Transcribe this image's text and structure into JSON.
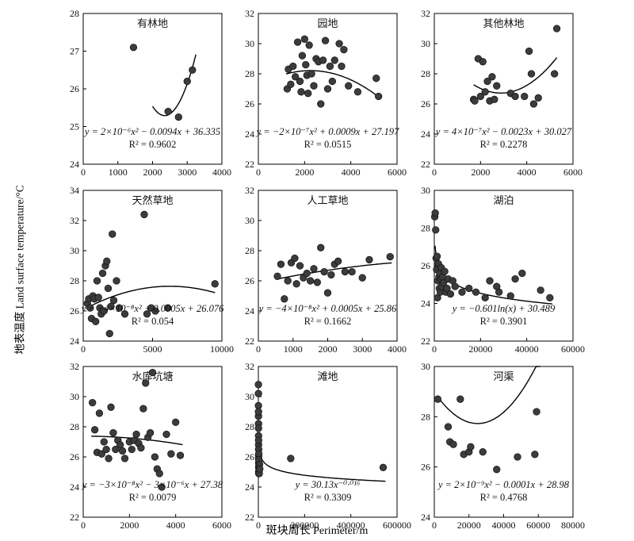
{
  "figure": {
    "ylabel": "地表温度 Land surface temperature/°C",
    "xlabel": "斑块周长  Perimeter/m"
  },
  "chart_data": [
    {
      "type": "scatter",
      "title": "有林地",
      "xlim": [
        0,
        4000
      ],
      "ylim": [
        24,
        28
      ],
      "xticks": [
        "0",
        "1000",
        "2000",
        "3000",
        "4000"
      ],
      "yticks": [
        "24",
        "25",
        "26",
        "27",
        "28"
      ],
      "equation": "y = 2×10⁻⁶x² − 0.0094x + 36.335",
      "r2": "R² = 0.9602",
      "fit": {
        "kind": "poly",
        "coef": [
          36.335,
          -0.0094,
          2e-06
        ],
        "range": [
          2000,
          3250
        ]
      },
      "points": [
        [
          1450,
          27.1
        ],
        [
          2450,
          25.4
        ],
        [
          2750,
          25.25
        ],
        [
          3000,
          26.2
        ],
        [
          3150,
          26.5
        ]
      ]
    },
    {
      "type": "scatter",
      "title": "园地",
      "xlim": [
        0,
        6000
      ],
      "ylim": [
        22,
        32
      ],
      "xticks": [
        "0",
        "2000",
        "4000",
        "6000"
      ],
      "yticks": [
        "22",
        "24",
        "26",
        "28",
        "30",
        "32"
      ],
      "equation": "y = −2×10⁻⁷x² + 0.0009x + 27.197",
      "r2": "R² = 0.0515",
      "fit": {
        "kind": "poly",
        "coef": [
          27.197,
          0.0009,
          -2e-07
        ],
        "range": [
          1200,
          5200
        ]
      },
      "points": [
        [
          1250,
          27.0
        ],
        [
          1300,
          28.3
        ],
        [
          1400,
          27.3
        ],
        [
          1500,
          28.5
        ],
        [
          1600,
          27.8
        ],
        [
          1700,
          30.1
        ],
        [
          1800,
          27.5
        ],
        [
          1850,
          26.8
        ],
        [
          1900,
          29.2
        ],
        [
          2000,
          30.3
        ],
        [
          2050,
          28.6
        ],
        [
          2100,
          27.9
        ],
        [
          2150,
          26.7
        ],
        [
          2200,
          29.9
        ],
        [
          2300,
          28.0
        ],
        [
          2400,
          27.2
        ],
        [
          2500,
          29.0
        ],
        [
          2600,
          28.8
        ],
        [
          2700,
          26.0
        ],
        [
          2800,
          28.9
        ],
        [
          2900,
          30.2
        ],
        [
          3000,
          27.0
        ],
        [
          3100,
          28.5
        ],
        [
          3200,
          27.5
        ],
        [
          3300,
          28.9
        ],
        [
          3500,
          30.0
        ],
        [
          3600,
          28.5
        ],
        [
          3700,
          29.6
        ],
        [
          3900,
          27.2
        ],
        [
          4300,
          26.8
        ],
        [
          5100,
          27.7
        ],
        [
          5200,
          26.5
        ]
      ]
    },
    {
      "type": "scatter",
      "title": "其他林地",
      "xlim": [
        0,
        6000
      ],
      "ylim": [
        22,
        32
      ],
      "xticks": [
        "0",
        "2000",
        "4000",
        "6000"
      ],
      "yticks": [
        "22",
        "24",
        "26",
        "28",
        "30",
        "32"
      ],
      "equation": "y = 4×10⁻⁷x² − 0.0023x + 30.027",
      "r2": "R² = 0.2278",
      "fit": {
        "kind": "poly",
        "coef": [
          30.027,
          -0.0023,
          4e-07
        ],
        "range": [
          1700,
          5300
        ]
      },
      "points": [
        [
          1700,
          26.3
        ],
        [
          1750,
          26.2
        ],
        [
          1900,
          29.0
        ],
        [
          2000,
          26.5
        ],
        [
          2100,
          28.8
        ],
        [
          2200,
          26.8
        ],
        [
          2300,
          27.5
        ],
        [
          2400,
          26.2
        ],
        [
          2500,
          27.8
        ],
        [
          2600,
          26.3
        ],
        [
          2700,
          27.2
        ],
        [
          3300,
          26.7
        ],
        [
          3500,
          26.5
        ],
        [
          3900,
          26.5
        ],
        [
          4100,
          29.5
        ],
        [
          4200,
          28.0
        ],
        [
          4300,
          26.0
        ],
        [
          4500,
          26.4
        ],
        [
          5200,
          28.0
        ],
        [
          5300,
          31.0
        ]
      ]
    },
    {
      "type": "scatter",
      "title": "天然草地",
      "xlim": [
        0,
        10000
      ],
      "ylim": [
        24,
        34
      ],
      "xticks": [
        "0",
        "5000",
        "10000"
      ],
      "yticks": [
        "24",
        "26",
        "28",
        "30",
        "32",
        "34"
      ],
      "equation": "y = −4×10⁻⁸x² + 0.0005x + 26.076",
      "r2": "R² = 0.054",
      "fit": {
        "kind": "poly",
        "coef": [
          26.076,
          0.0005,
          -4e-08
        ],
        "range": [
          200,
          9500
        ]
      },
      "points": [
        [
          300,
          26.5
        ],
        [
          400,
          26.8
        ],
        [
          500,
          26.2
        ],
        [
          600,
          25.5
        ],
        [
          700,
          27.0
        ],
        [
          800,
          26.8
        ],
        [
          900,
          25.3
        ],
        [
          1000,
          28.0
        ],
        [
          1100,
          26.9
        ],
        [
          1200,
          26.2
        ],
        [
          1300,
          25.8
        ],
        [
          1400,
          28.5
        ],
        [
          1500,
          26.0
        ],
        [
          1600,
          29.0
        ],
        [
          1700,
          29.3
        ],
        [
          1800,
          27.5
        ],
        [
          1900,
          24.5
        ],
        [
          2000,
          26.3
        ],
        [
          2100,
          31.1
        ],
        [
          2200,
          26.7
        ],
        [
          2400,
          28.0
        ],
        [
          2600,
          26.2
        ],
        [
          3000,
          25.8
        ],
        [
          4400,
          32.4
        ],
        [
          4600,
          25.8
        ],
        [
          4900,
          26.2
        ],
        [
          5200,
          26.0
        ],
        [
          6100,
          26.2
        ],
        [
          9500,
          27.8
        ]
      ]
    },
    {
      "type": "scatter",
      "title": "人工草地",
      "xlim": [
        0,
        4000
      ],
      "ylim": [
        22,
        32
      ],
      "xticks": [
        "0",
        "1000",
        "2000",
        "3000",
        "4000"
      ],
      "yticks": [
        "22",
        "24",
        "26",
        "28",
        "30",
        "32"
      ],
      "equation": "y = −4×10⁻⁸x² + 0.0005x + 25.86",
      "r2": "R² = 0.1662",
      "fit": {
        "kind": "poly",
        "coef": [
          25.86,
          0.0005,
          -4e-08
        ],
        "range": [
          500,
          3850
        ]
      },
      "points": [
        [
          550,
          26.3
        ],
        [
          650,
          27.1
        ],
        [
          750,
          24.8
        ],
        [
          850,
          26.0
        ],
        [
          950,
          27.2
        ],
        [
          1050,
          27.5
        ],
        [
          1100,
          25.8
        ],
        [
          1200,
          27.0
        ],
        [
          1300,
          26.2
        ],
        [
          1400,
          26.5
        ],
        [
          1500,
          26.0
        ],
        [
          1600,
          26.8
        ],
        [
          1700,
          25.9
        ],
        [
          1800,
          28.2
        ],
        [
          1900,
          26.6
        ],
        [
          2000,
          25.2
        ],
        [
          2100,
          26.4
        ],
        [
          2200,
          27.1
        ],
        [
          2300,
          27.3
        ],
        [
          2500,
          26.6
        ],
        [
          2700,
          26.6
        ],
        [
          3000,
          26.2
        ],
        [
          3200,
          27.4
        ],
        [
          3800,
          27.6
        ]
      ]
    },
    {
      "type": "scatter",
      "title": "湖泊",
      "xlim": [
        0,
        60000
      ],
      "ylim": [
        22,
        30
      ],
      "xticks": [
        "0",
        "20000",
        "40000",
        "60000"
      ],
      "yticks": [
        "22",
        "24",
        "26",
        "28",
        "30"
      ],
      "equation": "y = −0.601ln(x) + 30.489",
      "r2": "R² = 0.3901",
      "fit": {
        "kind": "log",
        "coef": [
          30.489,
          -0.601
        ],
        "range": [
          300,
          51000
        ]
      },
      "points": [
        [
          200,
          28.6
        ],
        [
          400,
          28.8
        ],
        [
          600,
          27.9
        ],
        [
          800,
          26.4
        ],
        [
          1000,
          25.8
        ],
        [
          1200,
          26.5
        ],
        [
          1400,
          24.3
        ],
        [
          1600,
          25.2
        ],
        [
          1800,
          26.1
        ],
        [
          2000,
          25.4
        ],
        [
          2200,
          24.8
        ],
        [
          2400,
          25.6
        ],
        [
          2600,
          24.6
        ],
        [
          2800,
          25.3
        ],
        [
          3000,
          25.9
        ],
        [
          3300,
          24.9
        ],
        [
          3600,
          25.4
        ],
        [
          4000,
          25.1
        ],
        [
          4500,
          25.7
        ],
        [
          5000,
          24.6
        ],
        [
          5500,
          24.8
        ],
        [
          6000,
          25.3
        ],
        [
          7000,
          24.5
        ],
        [
          8000,
          25.2
        ],
        [
          9000,
          24.9
        ],
        [
          12000,
          24.6
        ],
        [
          15000,
          24.8
        ],
        [
          18000,
          24.6
        ],
        [
          22000,
          24.3
        ],
        [
          24000,
          25.2
        ],
        [
          27000,
          24.9
        ],
        [
          28000,
          24.6
        ],
        [
          33000,
          24.4
        ],
        [
          35000,
          25.3
        ],
        [
          38000,
          25.6
        ],
        [
          46000,
          24.7
        ],
        [
          50000,
          24.3
        ]
      ]
    },
    {
      "type": "scatter",
      "title": "水库坑塘",
      "xlim": [
        0,
        6000
      ],
      "ylim": [
        22,
        32
      ],
      "xticks": [
        "0",
        "2000",
        "4000",
        "6000"
      ],
      "yticks": [
        "22",
        "24",
        "26",
        "28",
        "30",
        "32"
      ],
      "equation": "y = −3×10⁻⁸x² − 3×10⁻⁶x + 27.38",
      "r2": "R² = 0.0079",
      "fit": {
        "kind": "poly",
        "coef": [
          27.38,
          -3e-06,
          -3e-08
        ],
        "range": [
          350,
          4300
        ]
      },
      "points": [
        [
          400,
          29.6
        ],
        [
          500,
          27.8
        ],
        [
          600,
          26.3
        ],
        [
          700,
          28.9
        ],
        [
          800,
          26.2
        ],
        [
          900,
          27.0
        ],
        [
          1000,
          26.5
        ],
        [
          1100,
          25.9
        ],
        [
          1200,
          29.3
        ],
        [
          1300,
          27.6
        ],
        [
          1400,
          26.5
        ],
        [
          1500,
          27.1
        ],
        [
          1600,
          26.8
        ],
        [
          1700,
          26.4
        ],
        [
          1800,
          25.9
        ],
        [
          2000,
          27.0
        ],
        [
          2100,
          26.5
        ],
        [
          2200,
          27.1
        ],
        [
          2300,
          27.5
        ],
        [
          2400,
          26.9
        ],
        [
          2500,
          26.6
        ],
        [
          2600,
          29.2
        ],
        [
          2700,
          30.9
        ],
        [
          2800,
          27.3
        ],
        [
          2900,
          27.6
        ],
        [
          3000,
          31.6
        ],
        [
          3100,
          26.0
        ],
        [
          3200,
          25.2
        ],
        [
          3300,
          24.9
        ],
        [
          3400,
          24.0
        ],
        [
          3600,
          27.5
        ],
        [
          3800,
          26.2
        ],
        [
          4000,
          28.3
        ],
        [
          4200,
          26.1
        ]
      ]
    },
    {
      "type": "scatter",
      "title": "滩地",
      "xlim": [
        0,
        600000
      ],
      "ylim": [
        22,
        32
      ],
      "xticks": [
        "0",
        "200000",
        "400000",
        "600000"
      ],
      "yticks": [
        "22",
        "24",
        "26",
        "28",
        "30",
        "32"
      ],
      "equation": "y = 30.13x⁻⁰·⁰¹⁶",
      "r2": "R² = 0.3309",
      "fit": {
        "kind": "power",
        "coef": [
          30.13,
          -0.016
        ],
        "range": [
          2000,
          550000
        ]
      },
      "points": [
        [
          200,
          30.8
        ],
        [
          300,
          30.2
        ],
        [
          400,
          29.4
        ],
        [
          500,
          28.7
        ],
        [
          600,
          29.0
        ],
        [
          700,
          28.2
        ],
        [
          800,
          27.9
        ],
        [
          900,
          27.4
        ],
        [
          1000,
          26.8
        ],
        [
          1100,
          27.1
        ],
        [
          1200,
          26.5
        ],
        [
          1300,
          26.1
        ],
        [
          1400,
          25.9
        ],
        [
          1500,
          25.6
        ],
        [
          1600,
          25.3
        ],
        [
          1700,
          25.0
        ],
        [
          1800,
          24.9
        ],
        [
          2000,
          26.2
        ],
        [
          2200,
          25.8
        ],
        [
          2500,
          25.4
        ],
        [
          3000,
          25.1
        ],
        [
          4000,
          24.9
        ],
        [
          5000,
          25.5
        ],
        [
          6000,
          25.2
        ],
        [
          140000,
          25.9
        ],
        [
          540000,
          25.3
        ]
      ]
    },
    {
      "type": "scatter",
      "title": "河渠",
      "xlim": [
        0,
        80000
      ],
      "ylim": [
        24,
        30
      ],
      "xticks": [
        "0",
        "20000",
        "40000",
        "60000",
        "80000"
      ],
      "yticks": [
        "24",
        "26",
        "28",
        "30"
      ],
      "equation": "y = 2×10⁻⁹x² − 0.0001x + 28.98",
      "r2": "R² = 0.4768",
      "fit": {
        "kind": "poly",
        "coef": [
          28.98,
          -0.0001,
          2e-09
        ],
        "range": [
          1500,
          61000
        ]
      },
      "points": [
        [
          2000,
          28.7
        ],
        [
          8000,
          27.6
        ],
        [
          9000,
          27.0
        ],
        [
          11000,
          26.9
        ],
        [
          15000,
          28.7
        ],
        [
          17000,
          26.5
        ],
        [
          20000,
          26.6
        ],
        [
          21000,
          26.8
        ],
        [
          28000,
          26.6
        ],
        [
          36000,
          25.9
        ],
        [
          48000,
          26.4
        ],
        [
          58000,
          26.5
        ],
        [
          59000,
          28.2
        ]
      ]
    }
  ]
}
